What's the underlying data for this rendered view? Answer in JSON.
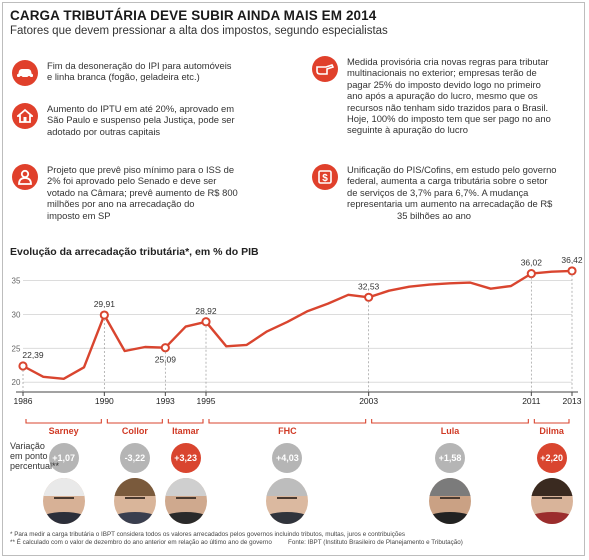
{
  "header": {
    "title": "CARGA TRIBUTÁRIA DEVE SUBIR AINDA MAIS EM 2014",
    "subtitle": "Fatores que devem pressionar a alta dos impostos, segundo especialistas"
  },
  "factors": [
    {
      "icon": "car-icon",
      "lines": [
        "Fim da desoneração do IPI para automóveis",
        "e linha branca (fogão, geladeira etc.)"
      ]
    },
    {
      "icon": "house-icon",
      "lines": [
        "Aumento do IPTU em até 20%, aprovado em",
        "São Paulo e suspenso pela Justiça, pode ser",
        "adotado por outras capitais"
      ]
    },
    {
      "icon": "worker-icon",
      "lines": [
        "Projeto que prevê piso mínimo para o ISS de",
        "2% foi aprovado pelo Senado e deve ser",
        "votado na Câmara; prevê aumento de R$ 800",
        "milhões por ano na arrecadação do",
        "imposto em SP"
      ]
    },
    {
      "icon": "hand-pointing-icon",
      "lines": [
        "Medida provisória cria novas regras para tributar",
        "multinacionais no exterior; empresas terão de",
        "pagar 25% do imposto devido logo no primeiro",
        "ano após a apuração do lucro, mesmo que os",
        "recursos não tenham sido trazidos para o Brasil.",
        "Hoje, 100% do imposto tem que ser pago no ano",
        "seguinte à apuração do lucro"
      ]
    },
    {
      "icon": "dollar-sign-icon",
      "lines": [
        "Unificação do PIS/Cofins, em estudo pelo governo",
        "federal, aumenta a carga tributária sobre o setor",
        "de serviços de 3,7% para 6,7%. A mudança",
        "representaria um aumento na arrecadação de R$",
        "35 bilhões ao ano"
      ]
    }
  ],
  "chart_data": {
    "type": "line",
    "title": "Evolução da arrecadação tributária*, em % do PIB",
    "x": [
      1986,
      1987,
      1988,
      1989,
      1990,
      1991,
      1992,
      1993,
      1994,
      1995,
      1996,
      1997,
      1998,
      1999,
      2000,
      2001,
      2002,
      2003,
      2004,
      2005,
      2006,
      2007,
      2008,
      2009,
      2010,
      2011,
      2012,
      2013
    ],
    "values": [
      22.39,
      20.8,
      20.5,
      22.2,
      29.91,
      24.6,
      25.2,
      25.09,
      28.2,
      28.92,
      25.3,
      25.5,
      27.5,
      28.9,
      30.5,
      31.6,
      32.9,
      32.53,
      33.5,
      34.1,
      34.4,
      34.6,
      34.7,
      33.8,
      34.2,
      36.02,
      36.3,
      36.42
    ],
    "x_labels": [
      "1986",
      "1990",
      "1993",
      "1995",
      "2003",
      "2011",
      "2013"
    ],
    "x_label_years": [
      1986,
      1990,
      1993,
      1995,
      2003,
      2011,
      2013
    ],
    "data_labels": [
      {
        "year": 1986,
        "text": "22,39"
      },
      {
        "year": 1990,
        "text": "29,91"
      },
      {
        "year": 1993,
        "text": "25,09"
      },
      {
        "year": 1995,
        "text": "28,92"
      },
      {
        "year": 2003,
        "text": "32,53"
      },
      {
        "year": 2011,
        "text": "36,02"
      },
      {
        "year": 2013,
        "text": "36,42"
      }
    ],
    "y_ticks": [
      "20",
      "25",
      "30",
      "35"
    ],
    "y_tick_values": [
      20,
      25,
      30,
      35
    ],
    "ylim": [
      19,
      37
    ],
    "xlim": [
      1986,
      2013
    ],
    "grid": true,
    "line_color": "#d9452f"
  },
  "presidents": [
    {
      "name": "Sarney",
      "variation": "+1,07",
      "start": 1986,
      "end": 1990,
      "highlight": false
    },
    {
      "name": "Collor",
      "variation": "-3,22",
      "start": 1990,
      "end": 1993,
      "highlight": false
    },
    {
      "name": "Itamar",
      "variation": "+3,23",
      "start": 1993,
      "end": 1995,
      "highlight": true
    },
    {
      "name": "FHC",
      "variation": "+4,03",
      "start": 1995,
      "end": 2003,
      "highlight": false
    },
    {
      "name": "Lula",
      "variation": "+1,58",
      "start": 2003,
      "end": 2011,
      "highlight": false
    },
    {
      "name": "Dilma",
      "variation": "+2,20",
      "start": 2011,
      "end": 2013,
      "highlight": true
    }
  ],
  "variation_label": [
    "Variação",
    "em ponto",
    "percentual**"
  ],
  "footnotes": [
    "* Para medir a carga tributária o IBPT considera todos os valores arrecadados pelos governos incluindo tributos, multas, juros e contribuições",
    "** É calculado com o valor de dezembro do ano anterior em relação ao último ano de governo"
  ],
  "source": "Fonte: IBPT (Instituto Brasileiro de Planejamento e Tributação)",
  "colors": {
    "accent": "#d9452f",
    "bubble_gray": "#b5b5b5"
  }
}
